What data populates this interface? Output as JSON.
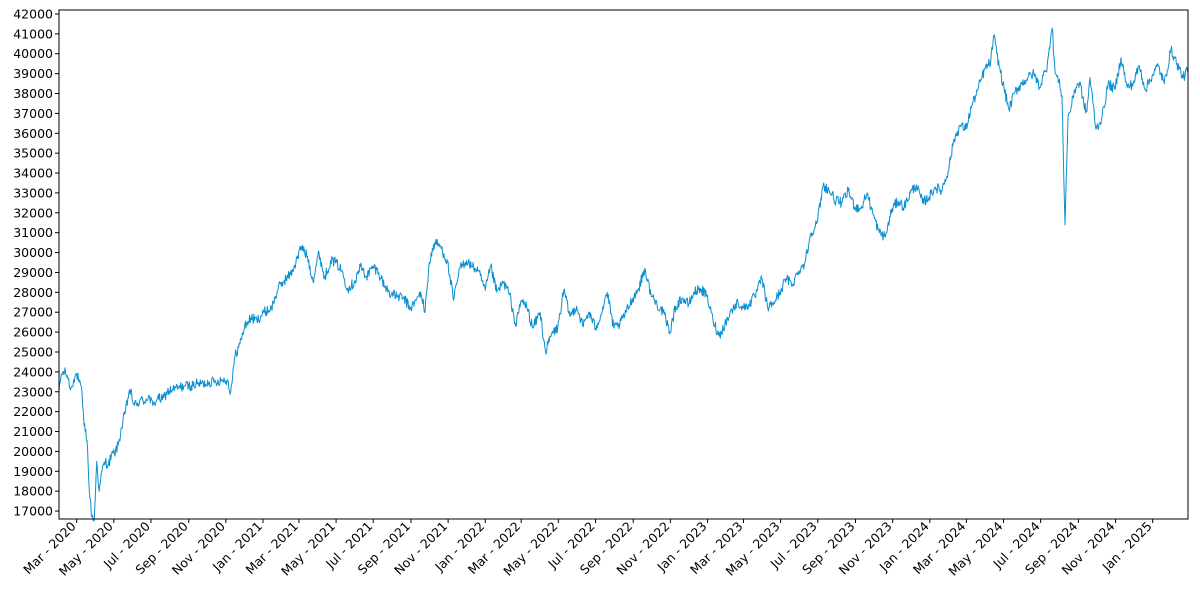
{
  "chart_data": {
    "type": "line",
    "title": "",
    "xlabel": "",
    "ylabel": "",
    "line_color": "#0a8fd0",
    "grid": false,
    "legend": "none",
    "ylim": [
      16600,
      42200
    ],
    "xlim": [
      "2020-02-01",
      "2025-02-28"
    ],
    "yticks": [
      17000,
      18000,
      19000,
      20000,
      21000,
      22000,
      23000,
      24000,
      25000,
      26000,
      27000,
      28000,
      29000,
      30000,
      31000,
      32000,
      33000,
      34000,
      35000,
      36000,
      37000,
      38000,
      39000,
      40000,
      41000,
      42000
    ],
    "xticks": [
      {
        "date": "2020-03-01",
        "label": "Mar - 2020"
      },
      {
        "date": "2020-05-01",
        "label": "May - 2020"
      },
      {
        "date": "2020-07-01",
        "label": "Jul - 2020"
      },
      {
        "date": "2020-09-01",
        "label": "Sep - 2020"
      },
      {
        "date": "2020-11-01",
        "label": "Nov - 2020"
      },
      {
        "date": "2021-01-01",
        "label": "Jan - 2021"
      },
      {
        "date": "2021-03-01",
        "label": "Mar - 2021"
      },
      {
        "date": "2021-05-01",
        "label": "May - 2021"
      },
      {
        "date": "2021-07-01",
        "label": "Jul - 2021"
      },
      {
        "date": "2021-09-01",
        "label": "Sep - 2021"
      },
      {
        "date": "2021-11-01",
        "label": "Nov - 2021"
      },
      {
        "date": "2022-01-01",
        "label": "Jan - 2022"
      },
      {
        "date": "2022-03-01",
        "label": "Mar - 2022"
      },
      {
        "date": "2022-05-01",
        "label": "May - 2022"
      },
      {
        "date": "2022-07-01",
        "label": "Jul - 2022"
      },
      {
        "date": "2022-09-01",
        "label": "Sep - 2022"
      },
      {
        "date": "2022-11-01",
        "label": "Nov - 2022"
      },
      {
        "date": "2023-01-01",
        "label": "Jan - 2023"
      },
      {
        "date": "2023-03-01",
        "label": "Mar - 2023"
      },
      {
        "date": "2023-05-01",
        "label": "May - 2023"
      },
      {
        "date": "2023-07-01",
        "label": "Jul - 2023"
      },
      {
        "date": "2023-09-01",
        "label": "Sep - 2023"
      },
      {
        "date": "2023-11-01",
        "label": "Nov - 2023"
      },
      {
        "date": "2024-01-01",
        "label": "Jan - 2024"
      },
      {
        "date": "2024-03-01",
        "label": "Mar - 2024"
      },
      {
        "date": "2024-05-01",
        "label": "May - 2024"
      },
      {
        "date": "2024-07-01",
        "label": "Jul - 2024"
      },
      {
        "date": "2024-09-01",
        "label": "Sep - 2024"
      },
      {
        "date": "2024-11-01",
        "label": "Nov - 2024"
      },
      {
        "date": "2025-01-01",
        "label": "Jan - 2025"
      }
    ],
    "series": [
      {
        "x": [
          "2020-02-01",
          "2020-02-05",
          "2020-02-10",
          "2020-02-15",
          "2020-02-20",
          "2020-02-25",
          "2020-03-01",
          "2020-03-05",
          "2020-03-10",
          "2020-03-13",
          "2020-03-16",
          "2020-03-19",
          "2020-03-21",
          "2020-03-23",
          "2020-03-26",
          "2020-03-30",
          "2020-04-03",
          "2020-04-07",
          "2020-04-12",
          "2020-04-17",
          "2020-04-22",
          "2020-04-27",
          "2020-05-02",
          "2020-05-08",
          "2020-05-14",
          "2020-05-20",
          "2020-05-27",
          "2020-06-03",
          "2020-06-08",
          "2020-06-13",
          "2020-06-20",
          "2020-06-27",
          "2020-07-04",
          "2020-07-12",
          "2020-07-20",
          "2020-07-28",
          "2020-08-05",
          "2020-08-15",
          "2020-08-25",
          "2020-09-05",
          "2020-09-15",
          "2020-09-25",
          "2020-10-05",
          "2020-10-15",
          "2020-10-25",
          "2020-11-03",
          "2020-11-09",
          "2020-11-16",
          "2020-11-24",
          "2020-12-02",
          "2020-12-12",
          "2020-12-22",
          "2021-01-03",
          "2021-01-15",
          "2021-01-26",
          "2021-02-05",
          "2021-02-15",
          "2021-02-24",
          "2021-03-05",
          "2021-03-15",
          "2021-03-24",
          "2021-04-03",
          "2021-04-12",
          "2021-04-22",
          "2021-05-01",
          "2021-05-10",
          "2021-05-20",
          "2021-05-31",
          "2021-06-10",
          "2021-06-20",
          "2021-07-01",
          "2021-07-10",
          "2021-07-20",
          "2021-07-31",
          "2021-08-10",
          "2021-08-20",
          "2021-08-31",
          "2021-09-10",
          "2021-09-17",
          "2021-09-24",
          "2021-10-01",
          "2021-10-10",
          "2021-10-20",
          "2021-10-31",
          "2021-11-10",
          "2021-11-20",
          "2021-12-01",
          "2021-12-10",
          "2021-12-20",
          "2022-01-01",
          "2022-01-10",
          "2022-01-20",
          "2022-01-31",
          "2022-02-10",
          "2022-02-20",
          "2022-03-01",
          "2022-03-10",
          "2022-03-20",
          "2022-04-01",
          "2022-04-10",
          "2022-04-20",
          "2022-04-30",
          "2022-05-10",
          "2022-05-20",
          "2022-05-31",
          "2022-06-10",
          "2022-06-20",
          "2022-07-01",
          "2022-07-10",
          "2022-07-20",
          "2022-07-31",
          "2022-08-10",
          "2022-08-20",
          "2022-08-31",
          "2022-09-10",
          "2022-09-20",
          "2022-09-30",
          "2022-10-10",
          "2022-10-20",
          "2022-10-31",
          "2022-11-10",
          "2022-11-20",
          "2022-12-01",
          "2022-12-10",
          "2022-12-20",
          "2022-12-31",
          "2023-01-10",
          "2023-01-20",
          "2023-01-31",
          "2023-02-10",
          "2023-02-20",
          "2023-03-01",
          "2023-03-10",
          "2023-03-20",
          "2023-03-31",
          "2023-04-10",
          "2023-04-20",
          "2023-04-30",
          "2023-05-10",
          "2023-05-20",
          "2023-05-31",
          "2023-06-10",
          "2023-06-20",
          "2023-06-30",
          "2023-07-10",
          "2023-07-20",
          "2023-07-31",
          "2023-08-10",
          "2023-08-20",
          "2023-08-31",
          "2023-09-10",
          "2023-09-20",
          "2023-09-30",
          "2023-10-10",
          "2023-10-20",
          "2023-10-31",
          "2023-11-10",
          "2023-11-20",
          "2023-11-30",
          "2023-12-10",
          "2023-12-20",
          "2023-12-31",
          "2024-01-10",
          "2024-01-20",
          "2024-01-31",
          "2024-02-10",
          "2024-02-20",
          "2024-02-29",
          "2024-03-10",
          "2024-03-20",
          "2024-03-31",
          "2024-04-10",
          "2024-04-15",
          "2024-04-20",
          "2024-04-30",
          "2024-05-10",
          "2024-05-20",
          "2024-05-31",
          "2024-06-10",
          "2024-06-20",
          "2024-06-30",
          "2024-07-05",
          "2024-07-10",
          "2024-07-15",
          "2024-07-20",
          "2024-07-25",
          "2024-07-31",
          "2024-08-03",
          "2024-08-05",
          "2024-08-07",
          "2024-08-10",
          "2024-08-15",
          "2024-08-20",
          "2024-08-25",
          "2024-08-31",
          "2024-09-05",
          "2024-09-10",
          "2024-09-15",
          "2024-09-20",
          "2024-09-30",
          "2024-10-10",
          "2024-10-20",
          "2024-10-31",
          "2024-11-10",
          "2024-11-20",
          "2024-11-30",
          "2024-12-10",
          "2024-12-20",
          "2024-12-31",
          "2025-01-10",
          "2025-01-20",
          "2025-01-31",
          "2025-02-10",
          "2025-02-20",
          "2025-02-28"
        ],
        "y": [
          23000,
          23900,
          24000,
          23800,
          23100,
          23600,
          23900,
          23500,
          22900,
          21300,
          21100,
          20100,
          18500,
          17600,
          16700,
          16550,
          19500,
          18000,
          19100,
          19500,
          19300,
          19800,
          19900,
          20300,
          21200,
          22000,
          23100,
          22400,
          22300,
          22600,
          22500,
          22800,
          22300,
          22700,
          22600,
          23000,
          23100,
          23200,
          23300,
          23300,
          23400,
          23400,
          23500,
          23500,
          23600,
          23600,
          23000,
          24800,
          25400,
          26300,
          26700,
          26600,
          27000,
          27200,
          28200,
          28600,
          28900,
          29500,
          30300,
          29800,
          28600,
          30000,
          28700,
          29600,
          29500,
          29100,
          28200,
          28500,
          29300,
          28800,
          29300,
          29000,
          28300,
          27900,
          27800,
          27700,
          27200,
          27600,
          28000,
          27000,
          29500,
          30500,
          30300,
          29500,
          27600,
          29200,
          29600,
          29300,
          29100,
          28100,
          29300,
          28000,
          28500,
          27900,
          26300,
          27600,
          27300,
          26200,
          27000,
          25000,
          25900,
          26200,
          28100,
          26800,
          27300,
          26300,
          27000,
          26200,
          26900,
          28000,
          26200,
          26400,
          27000,
          27700,
          28200,
          29200,
          27900,
          27400,
          27000,
          26000,
          27300,
          27700,
          27400,
          28000,
          28200,
          27800,
          26600,
          25800,
          26500,
          27100,
          27500,
          27200,
          27400,
          27800,
          28700,
          27200,
          27500,
          28000,
          28700,
          28400,
          29100,
          29500,
          31000,
          31500,
          33400,
          33100,
          32600,
          32500,
          33100,
          32300,
          32200,
          33000,
          31900,
          31000,
          30800,
          32200,
          32600,
          32300,
          33000,
          33400,
          32500,
          32800,
          33300,
          33100,
          34100,
          35700,
          36400,
          36200,
          37400,
          38200,
          39200,
          39600,
          40900,
          40000,
          38500,
          37200,
          38100,
          38500,
          38800,
          39000,
          38300,
          38900,
          39100,
          40300,
          41300,
          39000,
          38600,
          38200,
          37900,
          35200,
          31400,
          36800,
          37300,
          38100,
          38500,
          38400,
          37400,
          37100,
          38800,
          36200,
          36800,
          38500,
          38200,
          39800,
          38300,
          38500,
          39400,
          38200,
          38900,
          39400,
          38500,
          40200,
          39500,
          38800,
          39200
        ]
      }
    ]
  }
}
